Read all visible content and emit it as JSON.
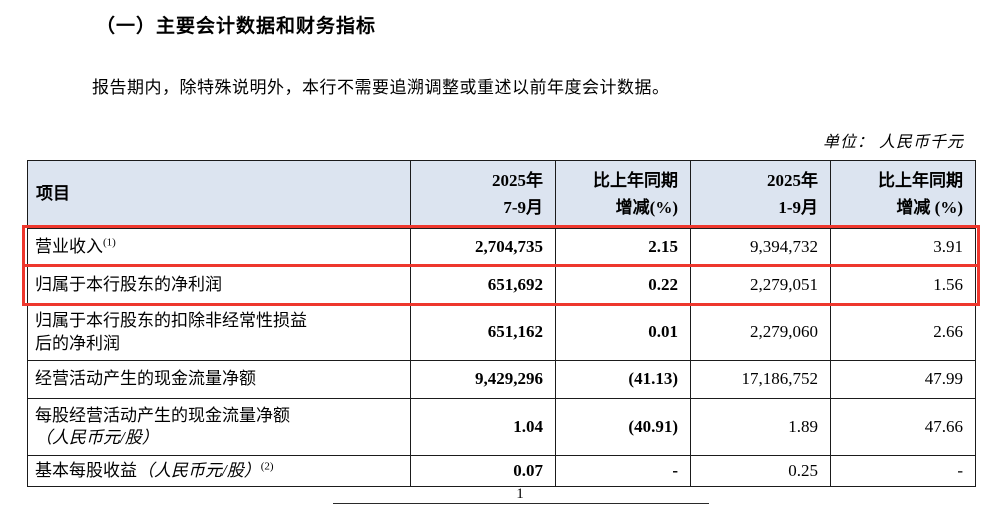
{
  "colors": {
    "highlight_border": "#ee372d",
    "table_header_background": "#dce4f0",
    "text": "#000000"
  },
  "page": {
    "section_title": "（一）主要会计数据和财务指标",
    "intro_paragraph": "报告期内，除特殊说明外，本行不需要追溯调整或重述以前年度会计数据。",
    "unit_note": "单位： 人民币千元",
    "page_number": "1"
  },
  "table": {
    "headers": [
      "项目",
      "2025年\n7-9月",
      "比上年同期\n增减(%)",
      "2025年\n1-9月",
      "比上年同期\n增减 (%)"
    ],
    "rows": [
      {
        "label": "营业收入",
        "italic": "",
        "sup": "(1)",
        "v1": "2,704,735",
        "v2": "2.15",
        "v3": "9,394,732",
        "v4": "3.91",
        "highlighted": true
      },
      {
        "label": "归属于本行股东的净利润",
        "italic": "",
        "sup": "",
        "v1": "651,692",
        "v2": "0.22",
        "v3": "2,279,051",
        "v4": "1.56",
        "highlighted": true
      },
      {
        "label": "归属于本行股东的扣除非经常性损益\n后的净利润",
        "italic": "",
        "sup": "",
        "v1": "651,162",
        "v2": "0.01",
        "v3": "2,279,060",
        "v4": "2.66",
        "highlighted": false
      },
      {
        "label": "经营活动产生的现金流量净额",
        "italic": "",
        "sup": "",
        "v1": "9,429,296",
        "v2": "(41.13)",
        "v3": "17,186,752",
        "v4": "47.99",
        "highlighted": false
      },
      {
        "label": "每股经营活动产生的现金流量净额",
        "italic": "\n（人民币元/股）",
        "sup": "",
        "v1": "1.04",
        "v2": "(40.91)",
        "v3": "1.89",
        "v4": "47.66",
        "highlighted": false
      },
      {
        "label": "基本每股收益",
        "italic": "（人民币元/股）",
        "sup": "(2)",
        "v1": "0.07",
        "v2": "-",
        "v3": "0.25",
        "v4": "-",
        "highlighted": false
      }
    ]
  }
}
